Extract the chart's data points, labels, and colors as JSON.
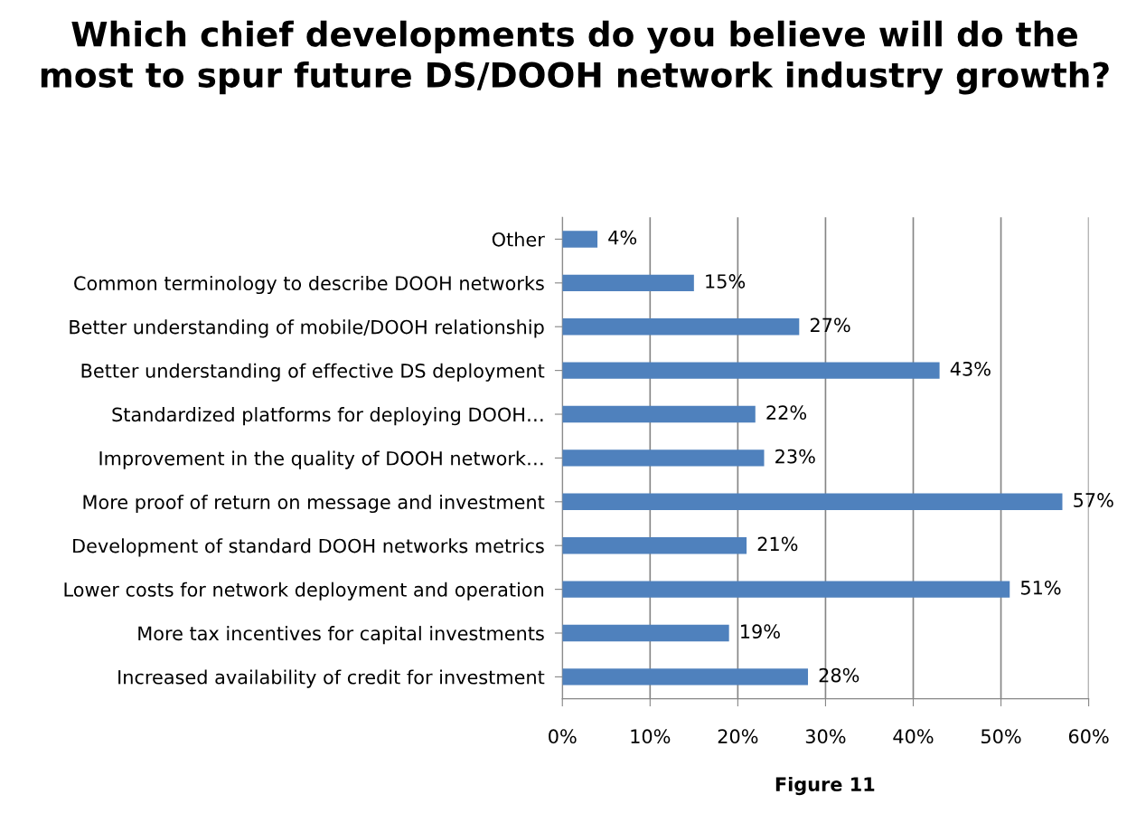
{
  "chart_data": {
    "type": "bar",
    "orientation": "horizontal",
    "title": "Which chief developments do you believe will do the most to spur future DS/DOOH network industry growth?",
    "categories": [
      "Other",
      "Common terminology to describe DOOH networks",
      "Better understanding of mobile/DOOH relationship",
      "Better understanding of effective DS deployment",
      "Standardized platforms for deploying DOOH…",
      "Improvement in the quality of DOOH network…",
      "More proof of return on message and investment",
      "Development of standard DOOH networks metrics",
      "Lower costs for network deployment and operation",
      "More tax incentives for capital investments",
      "Increased availability of credit for investment"
    ],
    "values": [
      4,
      15,
      27,
      43,
      22,
      23,
      57,
      21,
      51,
      19,
      28
    ],
    "value_labels": [
      "4%",
      "15%",
      "27%",
      "43%",
      "22%",
      "23%",
      "57%",
      "21%",
      "51%",
      "19%",
      "28%"
    ],
    "color": "#4f81bd",
    "xlim": [
      0,
      60
    ],
    "xticks": [
      {
        "value": 0,
        "label": "0%"
      },
      {
        "value": 10,
        "label": "10%"
      },
      {
        "value": 20,
        "label": "20%"
      },
      {
        "value": 30,
        "label": "30%"
      },
      {
        "value": 40,
        "label": "40%"
      },
      {
        "value": 50,
        "label": "50%"
      },
      {
        "value": 60,
        "label": "60%"
      }
    ],
    "grid": "x",
    "annotations": [
      "Figure 11"
    ]
  }
}
